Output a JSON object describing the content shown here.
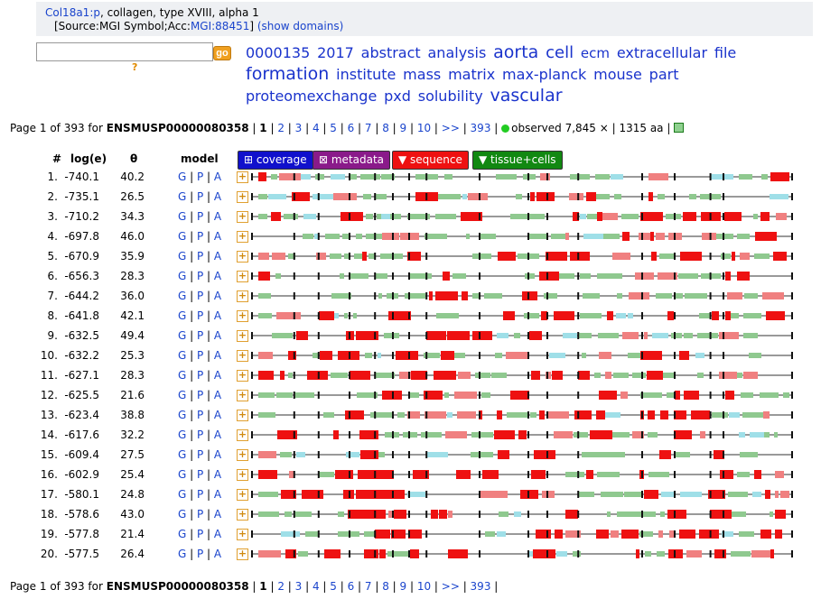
{
  "header": {
    "gene_link": "Col18a1:p",
    "gene_desc": ", collagen, type XVIII, alpha 1",
    "source_prefix": "[Source:MGI Symbol;Acc:",
    "source_link": "MGI:88451",
    "source_suffix": "]",
    "show_domains": "(show domains)"
  },
  "search": {
    "value": "",
    "go_label": "go",
    "help": "?"
  },
  "tag_cloud": [
    {
      "text": "0000135",
      "size": 16
    },
    {
      "text": "2017",
      "size": 16
    },
    {
      "text": "abstract",
      "size": 16
    },
    {
      "text": "analysis",
      "size": 16
    },
    {
      "text": "aorta",
      "size": 19
    },
    {
      "text": "cell",
      "size": 18
    },
    {
      "text": "ecm",
      "size": 15
    },
    {
      "text": "extracellular",
      "size": 16
    },
    {
      "text": "file",
      "size": 16
    },
    {
      "text": "formation",
      "size": 19
    },
    {
      "text": "institute",
      "size": 16
    },
    {
      "text": "mass",
      "size": 16
    },
    {
      "text": "matrix",
      "size": 16
    },
    {
      "text": "max-planck",
      "size": 16
    },
    {
      "text": "mouse",
      "size": 16
    },
    {
      "text": "part",
      "size": 16
    },
    {
      "text": "proteomexchange",
      "size": 16
    },
    {
      "text": "pxd",
      "size": 16
    },
    {
      "text": "solubility",
      "size": 16
    },
    {
      "text": "vascular",
      "size": 19
    }
  ],
  "pager": {
    "prefix": "Page 1 of 393 for",
    "protein": "ENSMUSP00000080358",
    "current": "1",
    "pages": [
      "2",
      "3",
      "4",
      "5",
      "6",
      "7",
      "8",
      "9",
      "10"
    ],
    "next": ">>",
    "last": "393",
    "observed": "observed 7,845 × | 1315 aa |"
  },
  "table": {
    "headers": {
      "num": "#",
      "loge": "log(e)",
      "theta": "θ",
      "model": "model"
    },
    "buttons": [
      {
        "label": "⊞ coverage",
        "color": "#1010cc"
      },
      {
        "label": "⊠ metadata",
        "color": "#8a1a8a"
      },
      {
        "label": "▼ sequence",
        "color": "#ee1111"
      },
      {
        "label": "▼ tissue+cells",
        "color": "#118811"
      }
    ],
    "model_links": [
      "G",
      "P",
      "A"
    ],
    "rows": [
      {
        "num": "1.",
        "loge": "-740.1",
        "theta": "40.2"
      },
      {
        "num": "2.",
        "loge": "-735.1",
        "theta": "26.5"
      },
      {
        "num": "3.",
        "loge": "-710.2",
        "theta": "34.3"
      },
      {
        "num": "4.",
        "loge": "-697.8",
        "theta": "46.0"
      },
      {
        "num": "5.",
        "loge": "-670.9",
        "theta": "35.9"
      },
      {
        "num": "6.",
        "loge": "-656.3",
        "theta": "28.3"
      },
      {
        "num": "7.",
        "loge": "-644.2",
        "theta": "36.0"
      },
      {
        "num": "8.",
        "loge": "-641.8",
        "theta": "42.1"
      },
      {
        "num": "9.",
        "loge": "-632.5",
        "theta": "49.4"
      },
      {
        "num": "10.",
        "loge": "-632.2",
        "theta": "25.3"
      },
      {
        "num": "11.",
        "loge": "-627.1",
        "theta": "28.3"
      },
      {
        "num": "12.",
        "loge": "-625.5",
        "theta": "21.6"
      },
      {
        "num": "13.",
        "loge": "-623.4",
        "theta": "38.8"
      },
      {
        "num": "14.",
        "loge": "-617.6",
        "theta": "32.2"
      },
      {
        "num": "15.",
        "loge": "-609.4",
        "theta": "27.5"
      },
      {
        "num": "16.",
        "loge": "-602.9",
        "theta": "25.4"
      },
      {
        "num": "17.",
        "loge": "-580.1",
        "theta": "24.8"
      },
      {
        "num": "18.",
        "loge": "-578.6",
        "theta": "43.0"
      },
      {
        "num": "19.",
        "loge": "-577.8",
        "theta": "21.4"
      },
      {
        "num": "20.",
        "loge": "-577.5",
        "theta": "26.4"
      }
    ]
  },
  "colors": {
    "coverage_red": "#ee1111",
    "coverage_pink": "#f08080",
    "coverage_green": "#8fc98f",
    "coverage_cyan": "#9fdfe8",
    "marker_black": "#111111"
  }
}
